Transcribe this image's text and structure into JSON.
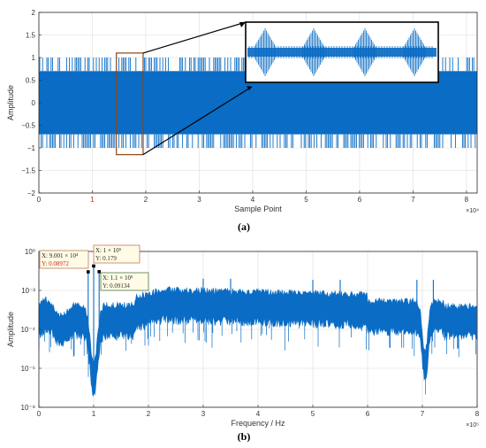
{
  "figure": {
    "caption_a": "(a)",
    "caption_b": "(b)"
  },
  "colors": {
    "signal": "#0a6cc4",
    "axis": "#262626",
    "grid": "#dcdcdc",
    "zoom_rect": "#8b4513",
    "zoom_box": "#000000",
    "tip_a": "#c07a56",
    "tip_b": "#4e7a3e"
  },
  "chart_data": [
    {
      "type": "line",
      "panel": "a",
      "xlabel": "Sample Point",
      "ylabel": "Amplitude",
      "x_exponent_label": "×10⁴",
      "xlim": [
        0,
        82000
      ],
      "ylim": [
        -2,
        2
      ],
      "xticks": [
        0,
        1,
        2,
        3,
        4,
        5,
        6,
        7,
        8
      ],
      "xticks_highlighted": [
        1
      ],
      "yticks": [
        -2,
        -1.5,
        -1,
        -0.5,
        0,
        0.5,
        1,
        1.5,
        2
      ],
      "ytick_labels": [
        "−2",
        "−1.5",
        "−1",
        "−0.5",
        "0",
        "0.5",
        "1",
        "1.5",
        "2"
      ],
      "grid": true,
      "series": [
        {
          "values": {
            "dense_envelope": [
              -0.7,
              0.7
            ],
            "sparse_peaks": [
              -1,
              1
            ]
          }
        }
      ],
      "zoom_region_x": [
        14500,
        19500
      ],
      "zoom_region_y": [
        -1.15,
        1.1
      ]
    },
    {
      "type": "line",
      "panel": "b",
      "xlabel": "Frequency / Hz",
      "ylabel": "Amplitude",
      "x_exponent_label": "×10⁵",
      "xlim": [
        0,
        800000
      ],
      "ylim": [
        1e-08,
        1
      ],
      "yscale": "log",
      "xticks": [
        0,
        1,
        2,
        3,
        4,
        5,
        6,
        7,
        8
      ],
      "ytick_labels": [
        "10⁰",
        "10⁻²",
        "10⁻⁴",
        "10⁻⁶",
        "10⁻⁸"
      ],
      "ytick_values": [
        1,
        0.01,
        0.0001,
        1e-06,
        1e-08
      ],
      "grid": true,
      "spectral_lines_hz": [
        90010,
        100000,
        110000,
        300000,
        350000,
        500000,
        550000
      ],
      "notches_hz": [
        100000,
        705000
      ],
      "datatips": [
        {
          "x": "X: 9.001 × 10⁴",
          "y": "Y: 0.08972",
          "x_hz": 90010,
          "y_val": 0.08972
        },
        {
          "x": "X: 1 × 10⁵",
          "y": "Y: 0.179",
          "x_hz": 100000,
          "y_val": 0.179
        },
        {
          "x": "X: 1.1 × 10⁵",
          "y": "Y: 0.09134",
          "x_hz": 110000,
          "y_val": 0.09134
        }
      ]
    }
  ]
}
